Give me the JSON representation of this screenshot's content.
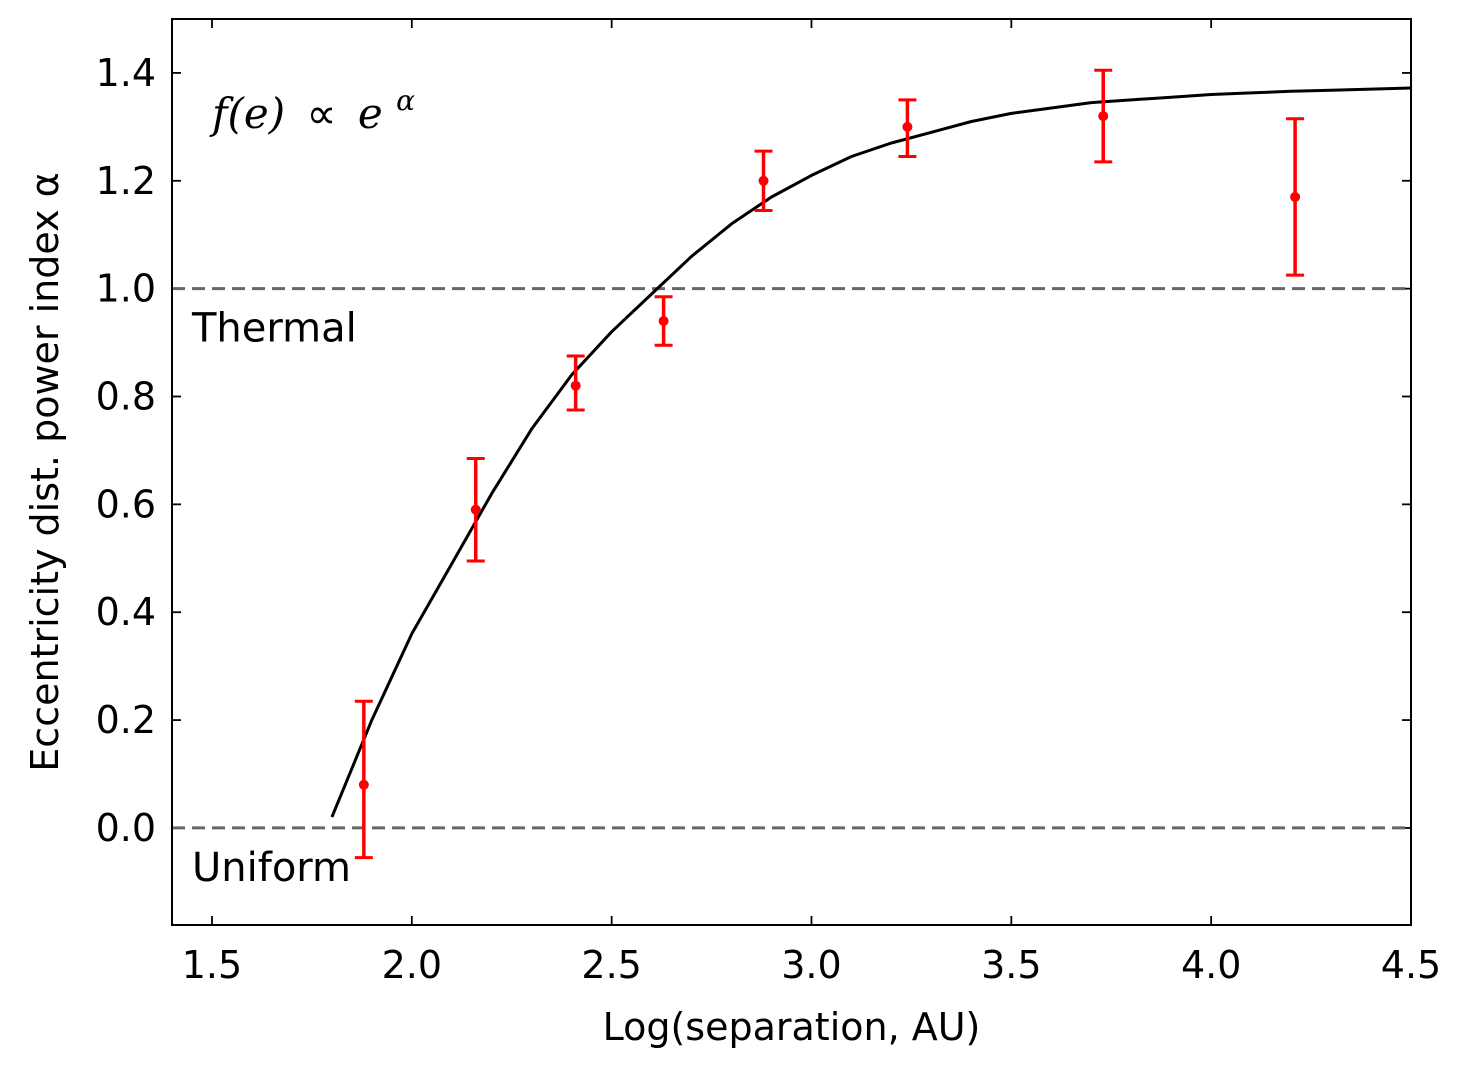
{
  "chart_data": {
    "type": "scatter",
    "xlabel": "Log(separation, AU)",
    "ylabel": "Eccentricity dist. power index α",
    "xlim": [
      1.4,
      4.5
    ],
    "ylim": [
      -0.18,
      1.5
    ],
    "x_ticks": [
      1.5,
      2.0,
      2.5,
      3.0,
      3.5,
      4.0,
      4.5
    ],
    "x_tick_labels": [
      "1.5",
      "2.0",
      "2.5",
      "3.0",
      "3.5",
      "4.0",
      "4.5"
    ],
    "y_ticks": [
      0.0,
      0.2,
      0.4,
      0.6,
      0.8,
      1.0,
      1.2,
      1.4
    ],
    "y_tick_labels": [
      "0.0",
      "0.2",
      "0.4",
      "0.6",
      "0.8",
      "1.0",
      "1.2",
      "1.4"
    ],
    "grid": false,
    "annotation": {
      "formula_lhs": "f(e)",
      "formula_relation": "∝",
      "formula_base": "e",
      "formula_exponent": "α"
    },
    "reference_lines": [
      {
        "y": 1.0,
        "label": "Thermal",
        "style": "dashed",
        "color": "#666666"
      },
      {
        "y": 0.0,
        "label": "Uniform",
        "style": "dashed",
        "color": "#666666"
      }
    ],
    "points": {
      "color": "#ff0000",
      "x": [
        1.88,
        2.16,
        2.41,
        2.63,
        2.88,
        3.24,
        3.73,
        4.21
      ],
      "y": [
        0.08,
        0.59,
        0.82,
        0.94,
        1.2,
        1.3,
        1.32,
        1.17
      ],
      "err_low": [
        0.135,
        0.095,
        0.045,
        0.045,
        0.055,
        0.055,
        0.085,
        0.145
      ],
      "err_high": [
        0.155,
        0.095,
        0.055,
        0.045,
        0.055,
        0.05,
        0.085,
        0.145
      ]
    },
    "fit_curve": {
      "color": "#000000",
      "x": [
        1.8,
        1.9,
        2.0,
        2.1,
        2.2,
        2.3,
        2.4,
        2.5,
        2.6,
        2.7,
        2.8,
        2.9,
        3.0,
        3.1,
        3.2,
        3.3,
        3.4,
        3.5,
        3.6,
        3.7,
        3.8,
        3.9,
        4.0,
        4.1,
        4.2,
        4.3,
        4.4,
        4.5
      ],
      "y": [
        0.02,
        0.2,
        0.36,
        0.49,
        0.62,
        0.74,
        0.84,
        0.92,
        0.99,
        1.06,
        1.12,
        1.17,
        1.21,
        1.245,
        1.27,
        1.29,
        1.31,
        1.325,
        1.335,
        1.345,
        1.35,
        1.355,
        1.36,
        1.363,
        1.366,
        1.368,
        1.37,
        1.372
      ]
    }
  }
}
